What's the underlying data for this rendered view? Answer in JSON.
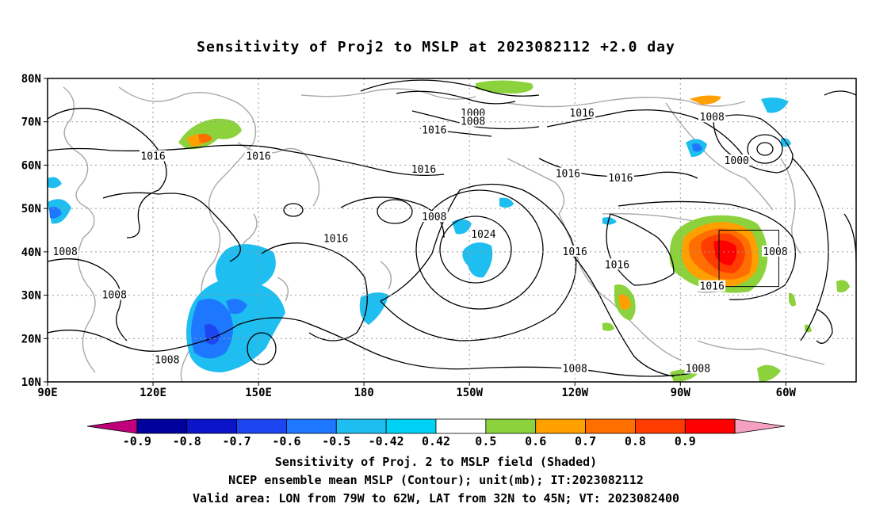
{
  "title": "Sensitivity of Proj2 to MSLP at 2023082112 +2.0 day",
  "lat_labels": [
    "80N",
    "70N",
    "60N",
    "50N",
    "40N",
    "30N",
    "20N",
    "10N"
  ],
  "lon_labels": [
    "90E",
    "120E",
    "150E",
    "180",
    "150W",
    "120W",
    "90W",
    "60W"
  ],
  "contour_labels": [
    {
      "text": "1016",
      "lon": 120,
      "lat": 62
    },
    {
      "text": "1016",
      "lon": 150,
      "lat": 62
    },
    {
      "text": "1016",
      "lon": 172,
      "lat": 43
    },
    {
      "text": "1008",
      "lon": 200,
      "lat": 48
    },
    {
      "text": "1016",
      "lon": 197,
      "lat": 59
    },
    {
      "text": "1000",
      "lon": 211,
      "lat": 72
    },
    {
      "text": "1008",
      "lon": 211,
      "lat": 70
    },
    {
      "text": "1016",
      "lon": 200,
      "lat": 68
    },
    {
      "text": "1024",
      "lon": 214,
      "lat": 44
    },
    {
      "text": "1016",
      "lon": 242,
      "lat": 72
    },
    {
      "text": "1016",
      "lon": 238,
      "lat": 58
    },
    {
      "text": "1016",
      "lon": 253,
      "lat": 57
    },
    {
      "text": "1016",
      "lon": 240,
      "lat": 40
    },
    {
      "text": "1016",
      "lon": 252,
      "lat": 37
    },
    {
      "text": "1008",
      "lon": 279,
      "lat": 71
    },
    {
      "text": "1000",
      "lon": 286,
      "lat": 61
    },
    {
      "text": "1008",
      "lon": 297,
      "lat": 40
    },
    {
      "text": "1016",
      "lon": 279,
      "lat": 32
    },
    {
      "text": "1008",
      "lon": 95,
      "lat": 40
    },
    {
      "text": "1008",
      "lon": 109,
      "lat": 30
    },
    {
      "text": "1008",
      "lon": 124,
      "lat": 15
    },
    {
      "text": "1008",
      "lon": 240,
      "lat": 13
    },
    {
      "text": "1008",
      "lon": 275,
      "lat": 13
    }
  ],
  "colorbar": {
    "colors": [
      "#c0007a",
      "#00009c",
      "#0a14c8",
      "#1e46f0",
      "#1e78ff",
      "#1ebef0",
      "#00d2f5",
      "#ffffff",
      "#8cd23c",
      "#ff9f00",
      "#ff6e00",
      "#ff3c00",
      "#ff0000",
      "#f5a0c0"
    ],
    "labels": [
      "-0.9",
      "-0.8",
      "-0.7",
      "-0.6",
      "-0.5",
      "-0.42",
      "0.42",
      "0.5",
      "0.6",
      "0.7",
      "0.8",
      "0.9"
    ]
  },
  "valid_box": {
    "lon_min": 281,
    "lon_max": 298,
    "lat_min": 32,
    "lat_max": 45
  },
  "footer": {
    "line1": "Sensitivity of Proj. 2 to MSLP field (Shaded)",
    "line2": "NCEP ensemble mean MSLP (Contour); unit(mb); IT:2023082112",
    "line3": "Valid area: LON from 79W to 62W, LAT from 32N to 45N; VT: 2023082400"
  }
}
